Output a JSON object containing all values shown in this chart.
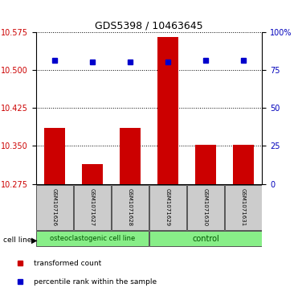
{
  "title": "GDS5398 / 10463645",
  "samples": [
    "GSM1071626",
    "GSM1071627",
    "GSM1071628",
    "GSM1071629",
    "GSM1071630",
    "GSM1071631"
  ],
  "red_bar_values": [
    10.385,
    10.315,
    10.385,
    10.565,
    10.352,
    10.352
  ],
  "blue_square_values": [
    10.52,
    10.516,
    10.516,
    10.516,
    10.52,
    10.52
  ],
  "y_min": 10.275,
  "y_max": 10.575,
  "y_ticks_left": [
    10.275,
    10.35,
    10.425,
    10.5,
    10.575
  ],
  "y_ticks_right": [
    0,
    25,
    50,
    75,
    100
  ],
  "bar_bottom": 10.275,
  "bar_color": "#cc0000",
  "square_color": "#0000cc",
  "group1_label": "osteoclastogenic cell line",
  "group2_label": "control",
  "cell_line_label": "cell line",
  "legend_red": "transformed count",
  "legend_blue": "percentile rank within the sample",
  "group_bg_color": "#88ee88",
  "label_box_color": "#cccccc",
  "xlabel_color_left": "#cc0000",
  "xlabel_color_right": "#0000bb",
  "bar_width": 0.55,
  "title_fontsize": 9,
  "tick_fontsize": 7,
  "sample_fontsize": 5,
  "group_fontsize": 6,
  "legend_fontsize": 6.5
}
